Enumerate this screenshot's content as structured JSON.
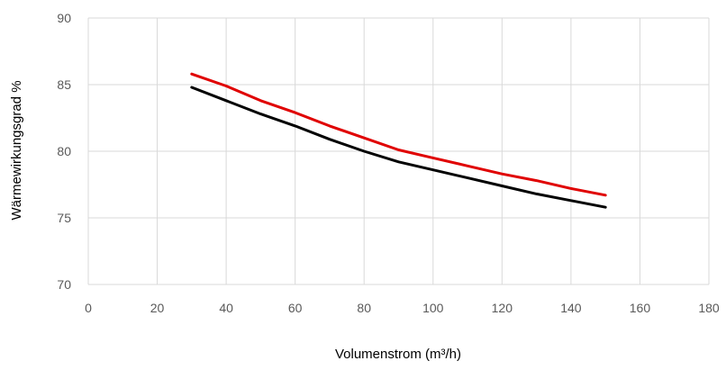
{
  "chart_data": {
    "type": "line",
    "title": "",
    "xlabel": "Volumenstrom  (m³/h)",
    "ylabel": "Wärmewirkungsgrad %",
    "xlim": [
      0,
      180
    ],
    "ylim": [
      70,
      90
    ],
    "x_ticks": [
      0,
      20,
      40,
      60,
      80,
      100,
      120,
      140,
      160,
      180
    ],
    "y_ticks": [
      70,
      75,
      80,
      85,
      90
    ],
    "grid": true,
    "legend": "none",
    "series": [
      {
        "color": "#e00000",
        "x": [
          30,
          40,
          50,
          60,
          70,
          80,
          90,
          100,
          110,
          120,
          130,
          140,
          150
        ],
        "values": [
          85.8,
          84.9,
          83.8,
          82.9,
          81.9,
          81.0,
          80.1,
          79.5,
          78.9,
          78.3,
          77.8,
          77.2,
          76.7
        ]
      },
      {
        "color": "#000000",
        "x": [
          30,
          40,
          50,
          60,
          70,
          80,
          90,
          100,
          110,
          120,
          130,
          140,
          150
        ],
        "values": [
          84.8,
          83.8,
          82.8,
          81.9,
          80.9,
          80.0,
          79.2,
          78.6,
          78.0,
          77.4,
          76.8,
          76.3,
          75.8
        ]
      }
    ]
  }
}
